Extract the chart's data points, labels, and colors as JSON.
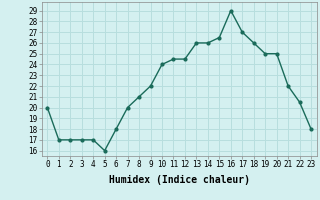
{
  "x": [
    0,
    1,
    2,
    3,
    4,
    5,
    6,
    7,
    8,
    9,
    10,
    11,
    12,
    13,
    14,
    15,
    16,
    17,
    18,
    19,
    20,
    21,
    22,
    23
  ],
  "y": [
    20,
    17,
    17,
    17,
    17,
    16,
    18,
    20,
    21,
    22,
    24,
    24.5,
    24.5,
    26,
    26,
    26.5,
    29,
    27,
    26,
    25,
    25,
    22,
    20.5,
    18
  ],
  "line_color": "#1a6b5a",
  "marker": "o",
  "marker_size": 2,
  "linewidth": 1.0,
  "bg_color": "#d4f0f0",
  "grid_color": "#b8dede",
  "xlabel": "Humidex (Indice chaleur)",
  "xlabel_fontsize": 7,
  "ylabel_ticks": [
    16,
    17,
    18,
    19,
    20,
    21,
    22,
    23,
    24,
    25,
    26,
    27,
    28,
    29
  ],
  "xlim": [
    -0.5,
    23.5
  ],
  "ylim": [
    15.5,
    29.8
  ],
  "xtick_labels": [
    "0",
    "1",
    "2",
    "3",
    "4",
    "5",
    "6",
    "7",
    "8",
    "9",
    "10",
    "11",
    "12",
    "13",
    "14",
    "15",
    "16",
    "17",
    "18",
    "19",
    "20",
    "21",
    "22",
    "23"
  ],
  "tick_fontsize": 5.5
}
